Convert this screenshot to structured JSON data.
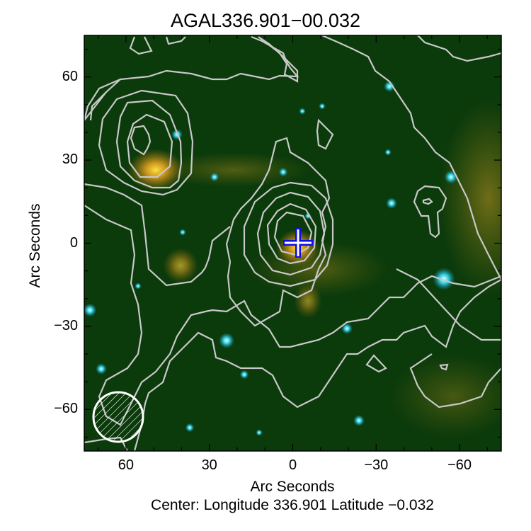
{
  "chart_data": {
    "type": "image",
    "title": "AGAL336.901−00.032",
    "xlabel": "Arc Seconds",
    "ylabel": "Arc Seconds",
    "xlim": [
      75,
      -75
    ],
    "ylim": [
      -75,
      75
    ],
    "xticks": [
      "60",
      "30",
      "0",
      "−30",
      "−60"
    ],
    "xtick_values": [
      60,
      30,
      0,
      -30,
      -60
    ],
    "yticks": [
      "60",
      "30",
      "0",
      "−30",
      "−60"
    ],
    "ytick_values": [
      60,
      30,
      0,
      -30,
      -60
    ],
    "footer": "Center:  Longitude 336.901 Latitude −0.032",
    "grid": false,
    "contour_color": "#c8c8c8",
    "background_color": "#0b3a0b",
    "marker": {
      "shape": "cross",
      "x": -3,
      "y": 1,
      "color": "#1010e0"
    },
    "beam": {
      "x": 62,
      "y": -62,
      "diameter": 19,
      "color": "#ffffff"
    }
  }
}
